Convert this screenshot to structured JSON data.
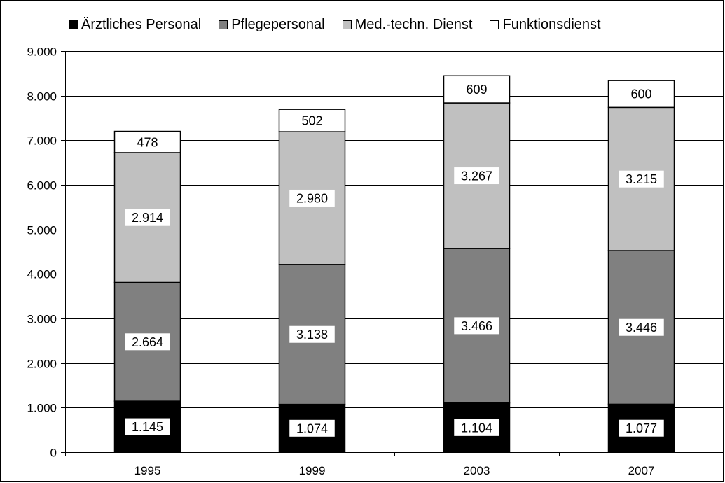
{
  "chart_data": {
    "type": "bar",
    "stacked": true,
    "categories": [
      "1995",
      "1999",
      "2003",
      "2007"
    ],
    "series": [
      {
        "name": "Ärztliches Personal",
        "color": "#000000",
        "values": [
          1145,
          1074,
          1104,
          1077
        ],
        "labels": [
          "1.145",
          "1.074",
          "1.104",
          "1.077"
        ]
      },
      {
        "name": "Pflegepersonal",
        "color": "#808080",
        "values": [
          2664,
          3138,
          3466,
          3446
        ],
        "labels": [
          "2.664",
          "3.138",
          "3.466",
          "3.446"
        ]
      },
      {
        "name": "Med.-techn. Dienst",
        "color": "#c0c0c0",
        "values": [
          2914,
          2980,
          3267,
          3215
        ],
        "labels": [
          "2.914",
          "2.980",
          "3.267",
          "3.215"
        ]
      },
      {
        "name": "Funktionsdienst",
        "color": "#ffffff",
        "values": [
          478,
          502,
          609,
          600
        ],
        "labels": [
          "478",
          "502",
          "609",
          "600"
        ]
      }
    ],
    "ylim": [
      0,
      9000
    ],
    "yticks": [
      0,
      1000,
      2000,
      3000,
      4000,
      5000,
      6000,
      7000,
      8000,
      9000
    ],
    "ytick_labels": [
      "0",
      "1.000",
      "2.000",
      "3.000",
      "4.000",
      "5.000",
      "6.000",
      "7.000",
      "8.000",
      "9.000"
    ],
    "grid": true,
    "legend_position": "top"
  }
}
